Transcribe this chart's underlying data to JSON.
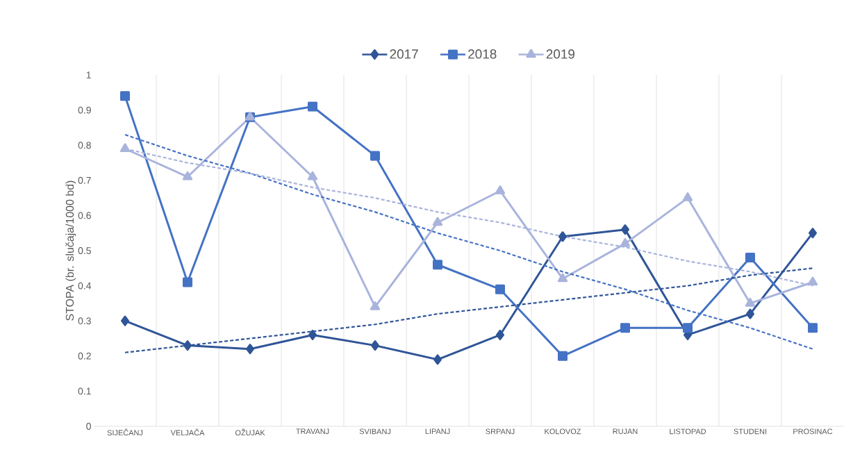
{
  "chart_data": {
    "type": "line",
    "ylabel": "STOPA (br. slučaja/1000 bd)",
    "categories": [
      "SIJEČANJ",
      "VELJAČA",
      "OŽUJAK",
      "TRAVANJ",
      "SVIBANJ",
      "LIPANJ",
      "SRPANJ",
      "KOLOVOZ",
      "RUJAN",
      "LISTOPAD",
      "STUDENI",
      "PROSINAC"
    ],
    "series": [
      {
        "name": "2017",
        "color": "#2f5597",
        "marker": "diamond",
        "line_style": "solid",
        "values": [
          0.3,
          0.23,
          0.22,
          0.26,
          0.23,
          0.19,
          0.26,
          0.54,
          0.56,
          0.26,
          0.32,
          0.55
        ]
      },
      {
        "name": "2018",
        "color": "#4472c4",
        "marker": "square",
        "line_style": "solid",
        "values": [
          0.94,
          0.41,
          0.88,
          0.91,
          0.77,
          0.46,
          0.39,
          0.2,
          0.28,
          0.28,
          0.48,
          0.28
        ]
      },
      {
        "name": "2019",
        "color": "#a9b4dc",
        "marker": "triangle",
        "line_style": "solid",
        "values": [
          0.79,
          0.71,
          0.88,
          0.71,
          0.34,
          0.58,
          0.67,
          0.42,
          0.52,
          0.65,
          0.35,
          0.41
        ]
      },
      {
        "color": "#2f5597",
        "marker": "none",
        "line_style": "dashed",
        "values": [
          0.21,
          0.23,
          0.25,
          0.27,
          0.29,
          0.32,
          0.34,
          0.36,
          0.38,
          0.4,
          0.43,
          0.45
        ]
      },
      {
        "color": "#4472c4",
        "marker": "none",
        "line_style": "dashed",
        "values": [
          0.83,
          0.77,
          0.72,
          0.66,
          0.61,
          0.55,
          0.5,
          0.44,
          0.39,
          0.33,
          0.28,
          0.22
        ]
      },
      {
        "color": "#a9b4dc",
        "marker": "none",
        "line_style": "dashed",
        "values": [
          0.79,
          0.75,
          0.72,
          0.68,
          0.65,
          0.61,
          0.58,
          0.54,
          0.51,
          0.47,
          0.44,
          0.4
        ]
      }
    ],
    "ylim": [
      0,
      1
    ],
    "yticks": [
      0,
      0.1,
      0.2,
      0.3,
      0.4,
      0.5,
      0.6,
      0.7,
      0.8,
      0.9,
      1
    ],
    "grid": "x",
    "legend": "top"
  }
}
